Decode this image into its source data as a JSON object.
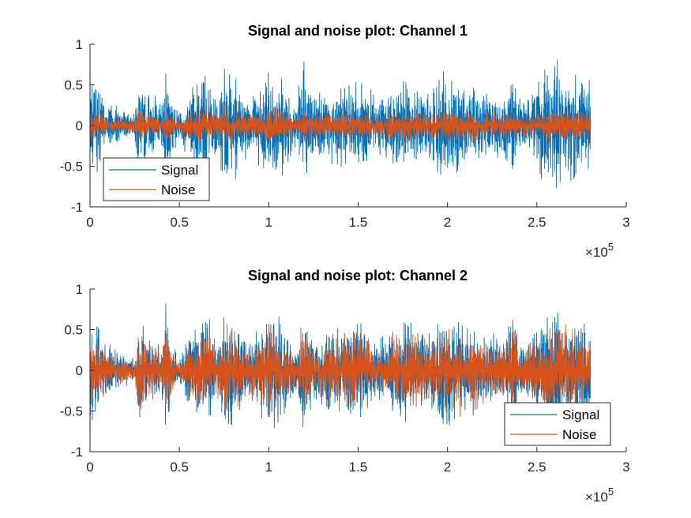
{
  "chart_data": [
    {
      "type": "line",
      "title": "Signal and noise plot: Channel 1",
      "xlim": [
        0,
        300000
      ],
      "ylim": [
        -1,
        1
      ],
      "x_ticks": [
        0,
        50000,
        100000,
        150000,
        200000,
        250000,
        300000
      ],
      "x_tick_labels": [
        "0",
        "0.5",
        "1",
        "1.5",
        "2",
        "2.5",
        "3"
      ],
      "y_ticks": [
        -1,
        -0.5,
        0,
        0.5,
        1
      ],
      "y_tick_labels": [
        "-1",
        "-0.5",
        "0",
        "0.5",
        "1"
      ],
      "x_exponent_label": {
        "base": "×10",
        "power": "5"
      },
      "legend_location": "bottom-left",
      "x_range_data": [
        0,
        280000
      ],
      "envelope_breakpoints": [
        0,
        10000,
        25000,
        27000,
        32000,
        40000,
        42000,
        46000,
        50000,
        56000,
        65000,
        72000,
        76000,
        90000,
        100000,
        110000,
        116000,
        118000,
        125000,
        140000,
        150000,
        160000,
        175000,
        190000,
        200000,
        215000,
        230000,
        238000,
        240000,
        260000,
        270000,
        280000
      ],
      "series": [
        {
          "name": "Signal",
          "color": "#0072BD",
          "amp_max": 0.95,
          "amp_min": -0.9,
          "envelope": [
            0.8,
            0.3,
            0.15,
            0.6,
            0.45,
            0.3,
            0.9,
            0.4,
            0.2,
            0.5,
            0.75,
            0.45,
            0.9,
            0.35,
            0.8,
            0.6,
            0.25,
            0.95,
            0.45,
            0.55,
            0.65,
            0.4,
            0.65,
            0.5,
            0.75,
            0.6,
            0.45,
            0.8,
            0.35,
            0.95,
            0.75,
            0.6
          ]
        },
        {
          "name": "Noise",
          "color": "#D95319",
          "amp_max": 0.35,
          "amp_min": -0.35,
          "envelope": [
            0.25,
            0.12,
            0.08,
            0.2,
            0.18,
            0.12,
            0.28,
            0.15,
            0.08,
            0.2,
            0.25,
            0.18,
            0.3,
            0.15,
            0.28,
            0.22,
            0.1,
            0.3,
            0.18,
            0.2,
            0.22,
            0.15,
            0.22,
            0.2,
            0.25,
            0.22,
            0.18,
            0.25,
            0.15,
            0.25,
            0.22,
            0.2
          ]
        }
      ]
    },
    {
      "type": "line",
      "title": "Signal and noise plot: Channel 2",
      "xlim": [
        0,
        300000
      ],
      "ylim": [
        -1,
        1
      ],
      "x_ticks": [
        0,
        50000,
        100000,
        150000,
        200000,
        250000,
        300000
      ],
      "x_tick_labels": [
        "0",
        "0.5",
        "1",
        "1.5",
        "2",
        "2.5",
        "3"
      ],
      "y_ticks": [
        -1,
        -0.5,
        0,
        0.5,
        1
      ],
      "y_tick_labels": [
        "-1",
        "-0.5",
        "0",
        "0.5",
        "1"
      ],
      "x_exponent_label": {
        "base": "×10",
        "power": "5"
      },
      "legend_location": "bottom-right",
      "x_range_data": [
        0,
        280000
      ],
      "envelope_breakpoints": [
        0,
        10000,
        25000,
        27000,
        32000,
        40000,
        42000,
        46000,
        50000,
        56000,
        65000,
        72000,
        76000,
        90000,
        100000,
        110000,
        116000,
        118000,
        125000,
        140000,
        150000,
        160000,
        175000,
        190000,
        200000,
        215000,
        230000,
        238000,
        240000,
        260000,
        270000,
        280000
      ],
      "series": [
        {
          "name": "Signal",
          "color": "#0072BD",
          "amp_max": 0.95,
          "amp_min": -0.95,
          "envelope": [
            0.85,
            0.35,
            0.15,
            0.75,
            0.5,
            0.3,
            0.9,
            0.4,
            0.2,
            0.55,
            0.75,
            0.45,
            0.9,
            0.4,
            0.85,
            0.6,
            0.25,
            0.95,
            0.5,
            0.6,
            0.75,
            0.4,
            0.7,
            0.55,
            0.8,
            0.6,
            0.45,
            0.85,
            0.35,
            0.9,
            0.75,
            0.6
          ]
        },
        {
          "name": "Noise",
          "color": "#D95319",
          "amp_max": 0.75,
          "amp_min": -0.7,
          "envelope": [
            0.55,
            0.3,
            0.1,
            0.6,
            0.4,
            0.25,
            0.7,
            0.3,
            0.12,
            0.45,
            0.6,
            0.35,
            0.7,
            0.3,
            0.6,
            0.45,
            0.15,
            0.75,
            0.4,
            0.5,
            0.6,
            0.3,
            0.55,
            0.45,
            0.65,
            0.5,
            0.35,
            0.7,
            0.25,
            0.7,
            0.6,
            0.5
          ]
        }
      ]
    }
  ]
}
